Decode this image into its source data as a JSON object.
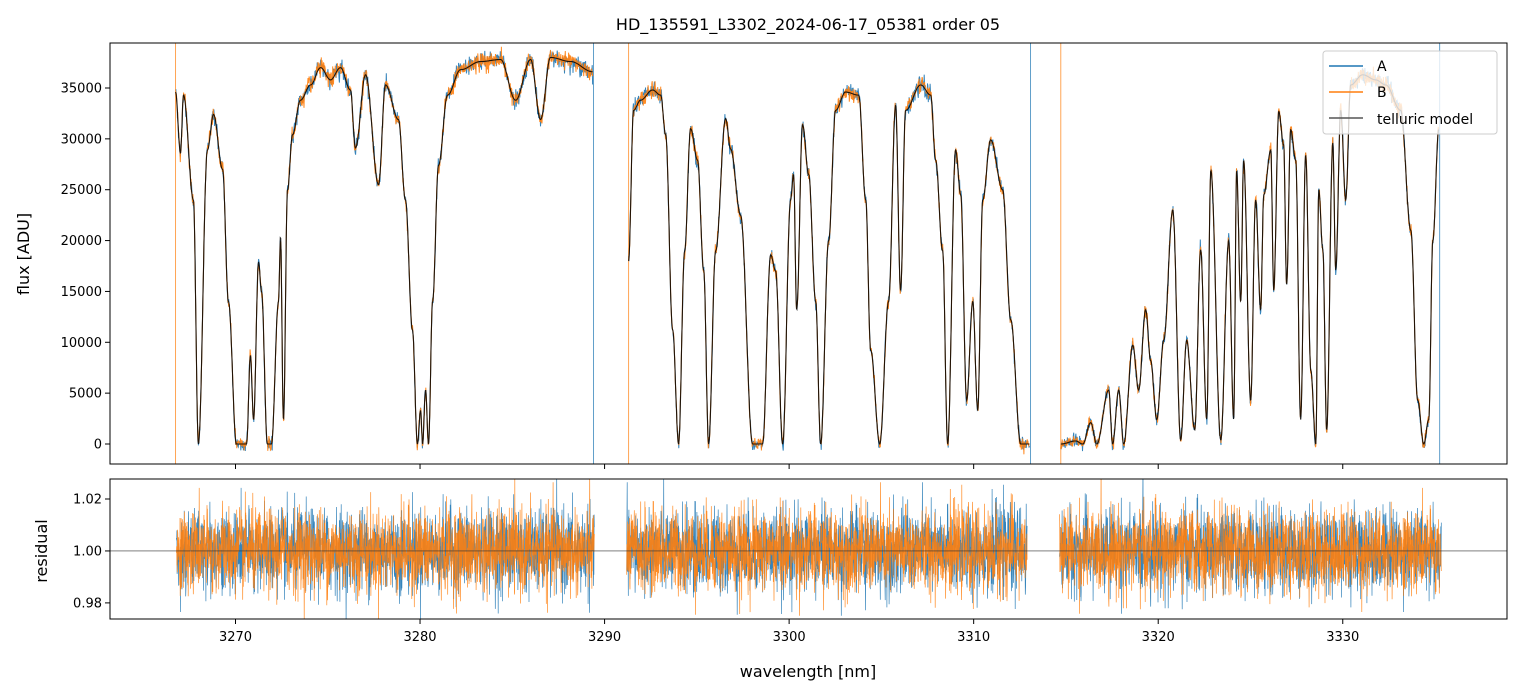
{
  "chart_data": {
    "type": "line",
    "title": "HD_135591_L3302_2024-06-17_05381  order 05",
    "xlabel": "wavelength [nm]",
    "xlim": [
      3263.2,
      3338.9
    ],
    "xticks": [
      3270,
      3280,
      3290,
      3300,
      3310,
      3320,
      3330
    ],
    "colors": {
      "A": "#1f77b4",
      "B": "#ff7f0e",
      "model": "#000000"
    },
    "legend": {
      "placement": "top-right",
      "entries": [
        "A",
        "B",
        "telluric model"
      ]
    },
    "flux_panel": {
      "ylabel": "flux [ADU]",
      "ylim": [
        -1966,
        39424
      ],
      "yticks": [
        0,
        5000,
        10000,
        15000,
        20000,
        25000,
        30000,
        35000
      ],
      "segments": [
        [
          [
            3266.75,
            34600
          ],
          [
            3267.02,
            28600
          ],
          [
            3267.18,
            34300
          ],
          [
            3267.72,
            24000
          ],
          [
            3267.99,
            0
          ],
          [
            3268.48,
            28900
          ],
          [
            3268.81,
            32400
          ],
          [
            3269.3,
            27000
          ],
          [
            3269.62,
            14000
          ],
          [
            3270.05,
            0
          ],
          [
            3270.6,
            0
          ],
          [
            3270.81,
            8700
          ],
          [
            3270.98,
            2400
          ],
          [
            3271.25,
            17900
          ],
          [
            3271.41,
            15000
          ],
          [
            3271.73,
            0
          ],
          [
            3271.95,
            0
          ],
          [
            3272.33,
            14000
          ],
          [
            3272.44,
            20400
          ],
          [
            3272.6,
            2400
          ],
          [
            3272.82,
            25000
          ],
          [
            3273.09,
            30400
          ],
          [
            3273.52,
            33800
          ],
          [
            3274.07,
            35300
          ],
          [
            3274.61,
            37000
          ],
          [
            3275.15,
            35800
          ],
          [
            3275.69,
            37000
          ],
          [
            3276.23,
            34800
          ],
          [
            3276.5,
            29100
          ],
          [
            3277.05,
            36300
          ],
          [
            3277.75,
            25500
          ],
          [
            3278.13,
            35300
          ],
          [
            3278.83,
            31900
          ],
          [
            3279.21,
            24000
          ],
          [
            3279.59,
            11200
          ],
          [
            3279.86,
            0
          ],
          [
            3280.03,
            3300
          ],
          [
            3280.14,
            0
          ],
          [
            3280.3,
            5300
          ],
          [
            3280.46,
            0
          ],
          [
            3280.68,
            14000
          ],
          [
            3281.0,
            27400
          ],
          [
            3281.49,
            34300
          ],
          [
            3282.2,
            36800
          ],
          [
            3283.28,
            37600
          ],
          [
            3284.36,
            37800
          ],
          [
            3285.18,
            33800
          ],
          [
            3285.99,
            37800
          ],
          [
            3286.53,
            31900
          ],
          [
            3287.07,
            38000
          ],
          [
            3288.16,
            37600
          ],
          [
            3289.35,
            36600
          ]
        ],
        [
          [
            3291.3,
            18000
          ],
          [
            3291.57,
            32800
          ],
          [
            3291.95,
            33800
          ],
          [
            3292.6,
            34800
          ],
          [
            3293.04,
            34300
          ],
          [
            3293.31,
            30400
          ],
          [
            3293.69,
            11200
          ],
          [
            3294.01,
            0
          ],
          [
            3294.34,
            19000
          ],
          [
            3294.66,
            31000
          ],
          [
            3295.04,
            27900
          ],
          [
            3295.37,
            17100
          ],
          [
            3295.64,
            0
          ],
          [
            3296.02,
            19000
          ],
          [
            3296.56,
            32000
          ],
          [
            3296.83,
            29000
          ],
          [
            3297.37,
            22500
          ],
          [
            3298.02,
            0
          ],
          [
            3298.56,
            0
          ],
          [
            3299.0,
            18600
          ],
          [
            3299.27,
            17000
          ],
          [
            3299.65,
            0
          ],
          [
            3300.08,
            24000
          ],
          [
            3300.24,
            26500
          ],
          [
            3300.41,
            13200
          ],
          [
            3300.73,
            31400
          ],
          [
            3301.06,
            26500
          ],
          [
            3301.44,
            14000
          ],
          [
            3301.71,
            0
          ],
          [
            3302.14,
            20000
          ],
          [
            3302.52,
            32800
          ],
          [
            3303.06,
            34600
          ],
          [
            3303.77,
            34300
          ],
          [
            3304.15,
            24000
          ],
          [
            3304.42,
            9200
          ],
          [
            3304.91,
            0
          ],
          [
            3305.39,
            14000
          ],
          [
            3305.77,
            33300
          ],
          [
            3306.04,
            15100
          ],
          [
            3306.31,
            32800
          ],
          [
            3307.13,
            35300
          ],
          [
            3307.67,
            34300
          ],
          [
            3307.94,
            27900
          ],
          [
            3308.32,
            19000
          ],
          [
            3308.59,
            0
          ],
          [
            3309.02,
            28900
          ],
          [
            3309.3,
            24500
          ],
          [
            3309.62,
            4300
          ],
          [
            3309.95,
            14000
          ],
          [
            3310.22,
            3300
          ],
          [
            3310.49,
            24000
          ],
          [
            3310.92,
            29900
          ],
          [
            3311.57,
            25000
          ],
          [
            3312.01,
            12200
          ],
          [
            3312.55,
            0
          ],
          [
            3313.03,
            0
          ]
        ],
        [
          [
            3314.72,
            0
          ],
          [
            3315.53,
            300
          ],
          [
            3315.91,
            0
          ],
          [
            3316.34,
            2100
          ],
          [
            3316.67,
            0
          ],
          [
            3317.32,
            5300
          ],
          [
            3317.53,
            0
          ],
          [
            3317.86,
            5300
          ],
          [
            3318.13,
            0
          ],
          [
            3318.62,
            9700
          ],
          [
            3318.94,
            5300
          ],
          [
            3319.32,
            13200
          ],
          [
            3319.59,
            8200
          ],
          [
            3319.92,
            2400
          ],
          [
            3320.3,
            10200
          ],
          [
            3320.79,
            23000
          ],
          [
            3321.22,
            400
          ],
          [
            3321.54,
            10200
          ],
          [
            3321.98,
            1400
          ],
          [
            3322.3,
            19100
          ],
          [
            3322.63,
            2400
          ],
          [
            3322.85,
            26900
          ],
          [
            3323.39,
            400
          ],
          [
            3323.82,
            20000
          ],
          [
            3324.09,
            2400
          ],
          [
            3324.25,
            26900
          ],
          [
            3324.47,
            14000
          ],
          [
            3324.63,
            27900
          ],
          [
            3325.01,
            4300
          ],
          [
            3325.28,
            24000
          ],
          [
            3325.55,
            13200
          ],
          [
            3325.72,
            24500
          ],
          [
            3326.1,
            28900
          ],
          [
            3326.26,
            15100
          ],
          [
            3326.53,
            32700
          ],
          [
            3326.8,
            29400
          ],
          [
            3326.96,
            15700
          ],
          [
            3327.18,
            30900
          ],
          [
            3327.45,
            27900
          ],
          [
            3327.72,
            2400
          ],
          [
            3327.99,
            28400
          ],
          [
            3328.27,
            7200
          ],
          [
            3328.54,
            0
          ],
          [
            3328.7,
            25000
          ],
          [
            3328.92,
            19100
          ],
          [
            3329.13,
            1400
          ],
          [
            3329.46,
            29600
          ],
          [
            3329.62,
            17100
          ],
          [
            3329.89,
            32800
          ],
          [
            3330.16,
            24000
          ],
          [
            3330.43,
            35300
          ],
          [
            3331.08,
            36300
          ],
          [
            3331.79,
            35800
          ],
          [
            3332.33,
            35300
          ],
          [
            3333.14,
            32800
          ],
          [
            3333.69,
            21000
          ],
          [
            3334.06,
            4300
          ],
          [
            3334.39,
            0
          ],
          [
            3334.66,
            2400
          ],
          [
            3334.88,
            20000
          ],
          [
            3335.2,
            30900
          ]
        ]
      ]
    },
    "residual_panel": {
      "ylabel": "residual",
      "ylim": [
        0.9738,
        1.0277
      ],
      "yticks": [
        0.98,
        1.0,
        1.02
      ],
      "reference": 1.0,
      "noise_sigma": 0.008,
      "segments": [
        [
          3266.8,
          3289.45
        ],
        [
          3291.2,
          3312.9
        ],
        [
          3314.65,
          3335.35
        ]
      ]
    }
  },
  "tick_labels": {
    "x": [
      "3270",
      "3280",
      "3290",
      "3300",
      "3310",
      "3320",
      "3330"
    ],
    "flux_y": [
      "0",
      "5000",
      "10000",
      "15000",
      "20000",
      "25000",
      "30000",
      "35000"
    ],
    "resid_y": [
      "0.98",
      "1.00",
      "1.02"
    ]
  }
}
